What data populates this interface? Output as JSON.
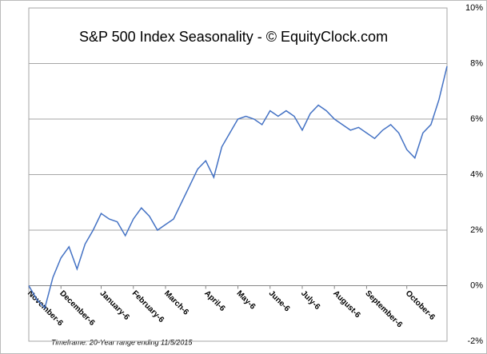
{
  "chart_data": {
    "type": "line",
    "title": "S&P 500 Index Seasonality - © EquityClock.com",
    "footnote": "Timeframe: 20-Year range ending 11/5/2015",
    "categories": [
      "November-6",
      null,
      null,
      null,
      "December-6",
      null,
      null,
      null,
      null,
      "January-6",
      null,
      null,
      null,
      "February-6",
      null,
      null,
      null,
      "March-6",
      null,
      null,
      null,
      null,
      "April-6",
      null,
      null,
      null,
      "May-6",
      null,
      null,
      null,
      "June-6",
      null,
      null,
      null,
      "July-6",
      null,
      null,
      null,
      "August-6",
      null,
      null,
      null,
      "September-6",
      null,
      null,
      null,
      null,
      "October-6",
      null,
      null,
      null,
      null,
      null
    ],
    "series": [
      {
        "name": "S&P 500",
        "color": "#4472c4",
        "values": [
          0,
          -0.5,
          -0.8,
          0.3,
          1.0,
          1.4,
          0.6,
          1.5,
          2.0,
          2.6,
          2.4,
          2.3,
          1.8,
          2.4,
          2.8,
          2.5,
          2.0,
          2.2,
          2.4,
          3.0,
          3.6,
          4.2,
          4.5,
          3.9,
          5.0,
          5.5,
          6.0,
          6.1,
          6.0,
          5.8,
          6.3,
          6.1,
          6.3,
          6.1,
          5.6,
          6.2,
          6.5,
          6.3,
          6.0,
          5.8,
          5.6,
          5.7,
          5.5,
          5.3,
          5.6,
          5.8,
          5.5,
          4.9,
          4.6,
          5.5,
          5.8,
          6.7,
          7.9
        ]
      }
    ],
    "ylim": [
      -2,
      10
    ],
    "yticks": [
      {
        "value": -2,
        "label": "-2%"
      },
      {
        "value": 0,
        "label": "0%"
      },
      {
        "value": 2,
        "label": "2%"
      },
      {
        "value": 4,
        "label": "4%"
      },
      {
        "value": 6,
        "label": "6%"
      },
      {
        "value": 8,
        "label": "8%"
      },
      {
        "value": 10,
        "label": "10%"
      }
    ],
    "grid": true
  }
}
